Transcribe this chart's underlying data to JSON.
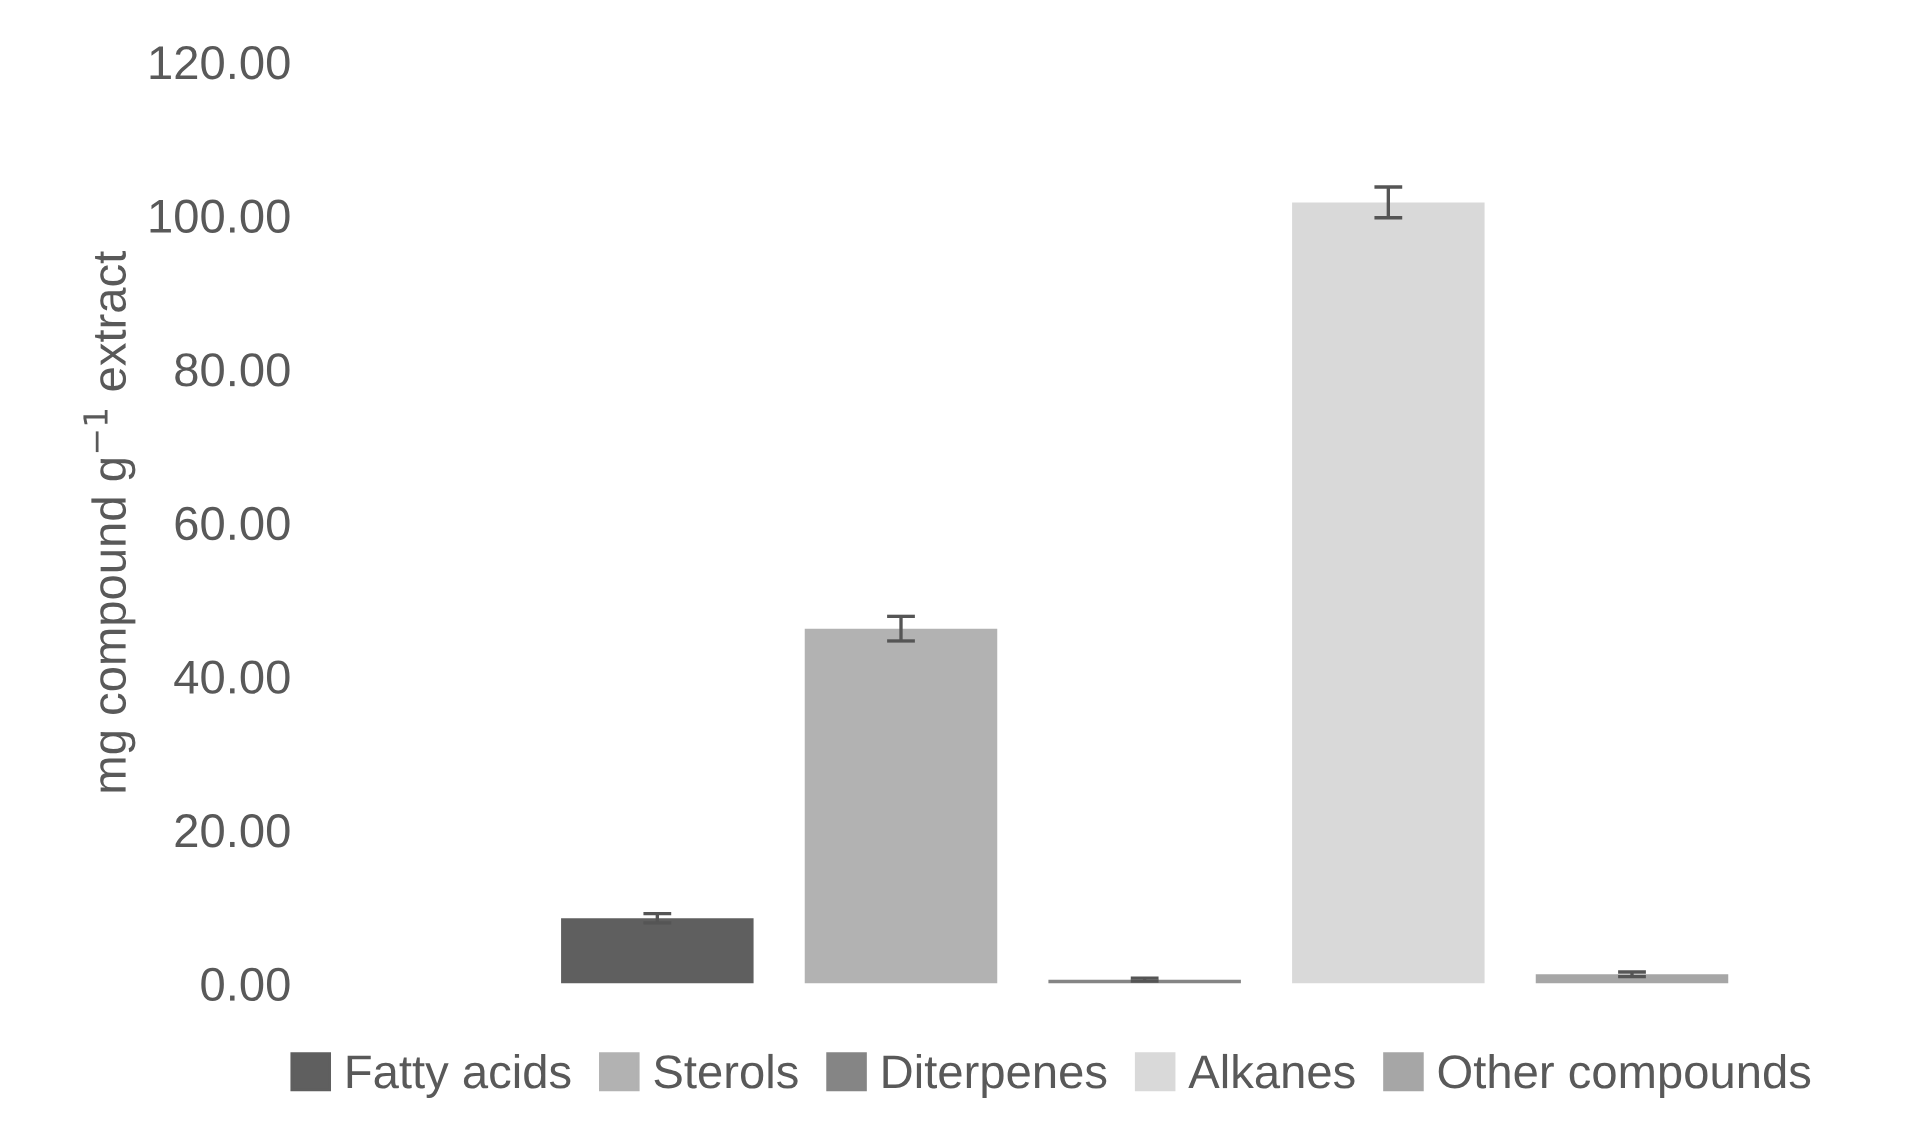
{
  "chart_data": {
    "type": "bar",
    "ylabel": "mg compound g$^{−1}$ extract",
    "categories": [
      null
    ],
    "series": [
      {
        "name": "Fatty acids",
        "color": "#5f5f5f",
        "values": [
          8.5
        ],
        "errors": [
          0.6
        ]
      },
      {
        "name": "Sterols",
        "color": "#b2b2b2",
        "values": [
          46.2
        ],
        "errors": [
          1.6
        ]
      },
      {
        "name": "Diterpenes",
        "color": "#858585",
        "values": [
          0.5
        ],
        "errors": [
          0.2
        ]
      },
      {
        "name": "Alkanes",
        "color": "#d9d9d9",
        "values": [
          101.7
        ],
        "errors": [
          2.0
        ]
      },
      {
        "name": "Other compounds",
        "color": "#a6a6a6",
        "values": [
          1.2
        ],
        "errors": [
          0.3
        ]
      }
    ],
    "ylim": [
      0,
      120
    ],
    "yticks": [
      {
        "value": 0,
        "label": "0.00"
      },
      {
        "value": 20,
        "label": "20.00"
      },
      {
        "value": 40,
        "label": "40.00"
      },
      {
        "value": 60,
        "label": "60.00"
      },
      {
        "value": 80,
        "label": "80.00"
      },
      {
        "value": 100,
        "label": "100.00"
      },
      {
        "value": 120,
        "label": "120.00"
      }
    ],
    "grid": false,
    "legend": "bottom"
  }
}
